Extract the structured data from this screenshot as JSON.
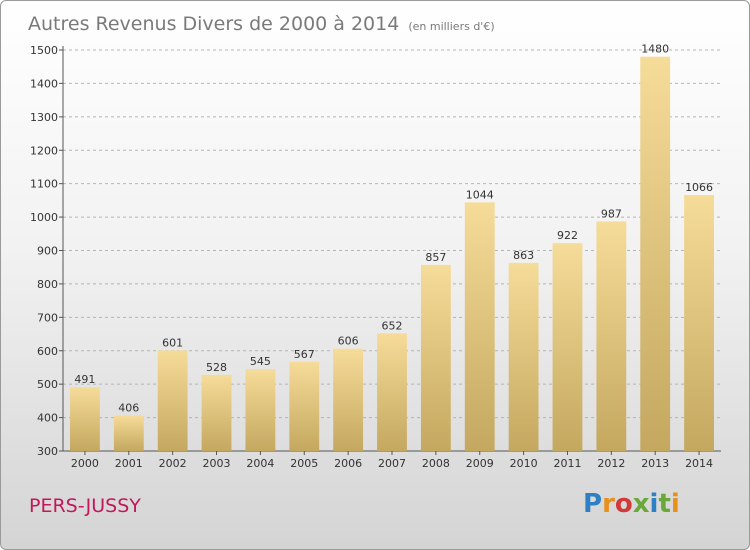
{
  "chart_data": {
    "type": "bar",
    "title": "Autres Revenus Divers de 2000 à 2014",
    "subtitle": "(en milliers d'€)",
    "categories": [
      "2000",
      "2001",
      "2002",
      "2003",
      "2004",
      "2005",
      "2006",
      "2007",
      "2008",
      "2009",
      "2010",
      "2011",
      "2012",
      "2013",
      "2014"
    ],
    "values": [
      491,
      406,
      601,
      528,
      545,
      567,
      606,
      652,
      857,
      1044,
      863,
      922,
      987,
      1480,
      1066
    ],
    "ylim": [
      300,
      1500
    ],
    "yticks": [
      300,
      400,
      500,
      600,
      700,
      800,
      900,
      1000,
      1100,
      1200,
      1300,
      1400,
      1500
    ],
    "grid": true,
    "colors": {
      "bar_top": "#f6dc99",
      "bar_bottom": "#c4a860",
      "grid": "#b5b5b5",
      "title": "#7a7a7a"
    }
  },
  "footer": {
    "place": "PERS-JUSSY",
    "place_color": "#c2185b",
    "logo": "Proxiti",
    "logo_colors": [
      "#2e7fc4",
      "#e8901a",
      "#d23a3a",
      "#6aa83a",
      "#2e7fc4",
      "#6aa83a",
      "#e8901a"
    ]
  }
}
